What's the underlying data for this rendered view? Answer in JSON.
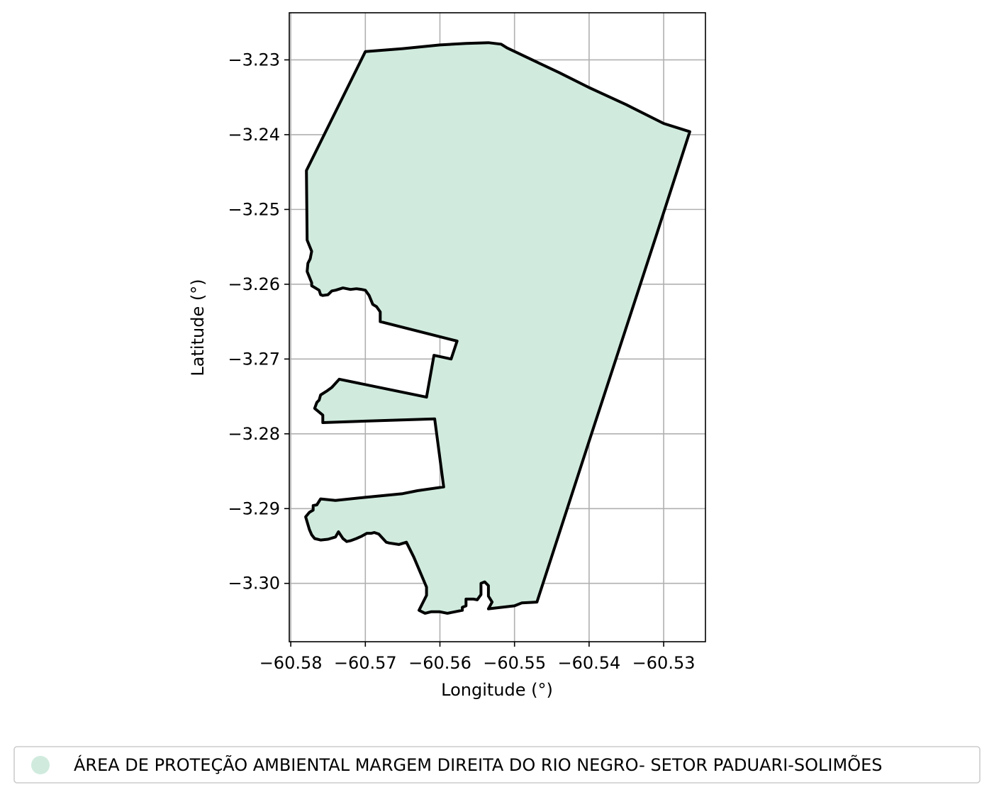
{
  "chart_data": {
    "type": "map",
    "xlabel": "Longitude (°)",
    "ylabel": "Latitude (°)",
    "xlim": [
      -60.5802,
      -60.5244
    ],
    "ylim": [
      -3.3078,
      -3.2237
    ],
    "grid": true,
    "x_ticks": [
      {
        "value": -60.58,
        "label": "−60.58"
      },
      {
        "value": -60.57,
        "label": "−60.57"
      },
      {
        "value": -60.56,
        "label": "−60.56"
      },
      {
        "value": -60.55,
        "label": "−60.55"
      },
      {
        "value": -60.54,
        "label": "−60.54"
      },
      {
        "value": -60.53,
        "label": "−60.53"
      }
    ],
    "y_ticks": [
      {
        "value": -3.23,
        "label": "−3.23"
      },
      {
        "value": -3.24,
        "label": "−3.24"
      },
      {
        "value": -3.25,
        "label": "−3.25"
      },
      {
        "value": -3.26,
        "label": "−3.26"
      },
      {
        "value": -3.27,
        "label": "−3.27"
      },
      {
        "value": -3.28,
        "label": "−3.28"
      },
      {
        "value": -3.29,
        "label": "−3.29"
      },
      {
        "value": -3.3,
        "label": "−3.30"
      }
    ],
    "legend": {
      "placement": "bottom",
      "entries": [
        {
          "label": "ÁREA DE PROTEÇÃO AMBIENTAL MARGEM DIREITA DO RIO NEGRO- SETOR PADUARI-SOLIMÕES",
          "color": "#d0ebde"
        }
      ]
    },
    "polygon": {
      "fill": "#d0ebde",
      "stroke": "#000000",
      "coordinates": [
        [
          -60.57,
          -3.2289
        ],
        [
          -60.565,
          -3.2285
        ],
        [
          -60.56,
          -3.228
        ],
        [
          -60.5565,
          -3.2278
        ],
        [
          -60.5535,
          -3.2277
        ],
        [
          -60.5518,
          -3.2279
        ],
        [
          -60.551,
          -3.2284
        ],
        [
          -60.547,
          -3.2303
        ],
        [
          -60.544,
          -3.2317
        ],
        [
          -60.54,
          -3.2337
        ],
        [
          -60.535,
          -3.236
        ],
        [
          -60.53,
          -3.2385
        ],
        [
          -60.5265,
          -3.2396
        ],
        [
          -60.531,
          -3.2535
        ],
        [
          -60.54,
          -3.281
        ],
        [
          -60.547,
          -3.3025
        ],
        [
          -60.549,
          -3.3026
        ],
        [
          -60.55,
          -3.303
        ],
        [
          -60.5535,
          -3.3034
        ],
        [
          -60.553,
          -3.3025
        ],
        [
          -60.5535,
          -3.3017
        ],
        [
          -60.5535,
          -3.3003
        ],
        [
          -60.554,
          -3.2998
        ],
        [
          -60.5545,
          -3.3
        ],
        [
          -60.5545,
          -3.3015
        ],
        [
          -60.555,
          -3.3022
        ],
        [
          -60.5555,
          -3.3021
        ],
        [
          -60.5565,
          -3.3021
        ],
        [
          -60.5565,
          -3.303
        ],
        [
          -60.557,
          -3.3032
        ],
        [
          -60.557,
          -3.3036
        ],
        [
          -60.559,
          -3.304
        ],
        [
          -60.56,
          -3.3038
        ],
        [
          -60.5612,
          -3.3038
        ],
        [
          -60.562,
          -3.304
        ],
        [
          -60.5628,
          -3.3036
        ],
        [
          -60.5618,
          -3.3016
        ],
        [
          -60.5618,
          -3.3005
        ],
        [
          -60.5635,
          -3.2965
        ],
        [
          -60.5645,
          -3.2945
        ],
        [
          -60.5655,
          -3.2948
        ],
        [
          -60.5668,
          -3.2946
        ],
        [
          -60.5672,
          -3.2945
        ],
        [
          -60.5682,
          -3.2934
        ],
        [
          -60.5688,
          -3.2932
        ],
        [
          -60.5692,
          -3.2933
        ],
        [
          -60.5698,
          -3.2933
        ],
        [
          -60.5705,
          -3.2937
        ],
        [
          -60.5712,
          -3.294
        ],
        [
          -60.572,
          -3.2943
        ],
        [
          -60.5725,
          -3.2944
        ],
        [
          -60.573,
          -3.294
        ],
        [
          -60.5736,
          -3.2931
        ],
        [
          -60.574,
          -3.2938
        ],
        [
          -60.575,
          -3.2941
        ],
        [
          -60.576,
          -3.2942
        ],
        [
          -60.5768,
          -3.294
        ],
        [
          -60.5772,
          -3.2935
        ],
        [
          -60.5775,
          -3.2928
        ],
        [
          -60.578,
          -3.2911
        ],
        [
          -60.5775,
          -3.2905
        ],
        [
          -60.577,
          -3.2902
        ],
        [
          -60.577,
          -3.2896
        ],
        [
          -60.5765,
          -3.2895
        ],
        [
          -60.576,
          -3.2887
        ],
        [
          -60.574,
          -3.2889
        ],
        [
          -60.57,
          -3.2885
        ],
        [
          -60.565,
          -3.288
        ],
        [
          -60.563,
          -3.2876
        ],
        [
          -60.5595,
          -3.2871
        ],
        [
          -60.5607,
          -3.278
        ],
        [
          -60.57,
          -3.2783
        ],
        [
          -60.5757,
          -3.2785
        ],
        [
          -60.5757,
          -3.2775
        ],
        [
          -60.5768,
          -3.2766
        ],
        [
          -60.5765,
          -3.2758
        ],
        [
          -60.5762,
          -3.2755
        ],
        [
          -60.576,
          -3.2748
        ],
        [
          -60.5752,
          -3.2743
        ],
        [
          -60.5745,
          -3.2738
        ],
        [
          -60.5735,
          -3.2727
        ],
        [
          -60.5618,
          -3.2751
        ],
        [
          -60.5608,
          -3.2695
        ],
        [
          -60.5585,
          -3.27
        ],
        [
          -60.5577,
          -3.2676
        ],
        [
          -60.568,
          -3.265
        ],
        [
          -60.568,
          -3.2637
        ],
        [
          -60.5685,
          -3.263
        ],
        [
          -60.569,
          -3.2627
        ],
        [
          -60.5695,
          -3.2615
        ],
        [
          -60.57,
          -3.2608
        ],
        [
          -60.5705,
          -3.2607
        ],
        [
          -60.5712,
          -3.2606
        ],
        [
          -60.572,
          -3.2607
        ],
        [
          -60.573,
          -3.2605
        ],
        [
          -60.574,
          -3.2608
        ],
        [
          -60.5745,
          -3.2609
        ],
        [
          -60.575,
          -3.2614
        ],
        [
          -60.5757,
          -3.2615
        ],
        [
          -60.576,
          -3.2614
        ],
        [
          -60.5762,
          -3.2608
        ],
        [
          -60.5767,
          -3.2605
        ],
        [
          -60.5772,
          -3.2602
        ],
        [
          -60.5772,
          -3.2598
        ],
        [
          -60.5778,
          -3.2583
        ],
        [
          -60.5777,
          -3.2572
        ],
        [
          -60.5774,
          -3.2566
        ],
        [
          -60.5772,
          -3.2556
        ],
        [
          -60.5778,
          -3.2541
        ],
        [
          -60.5779,
          -3.2448
        ]
      ]
    }
  }
}
